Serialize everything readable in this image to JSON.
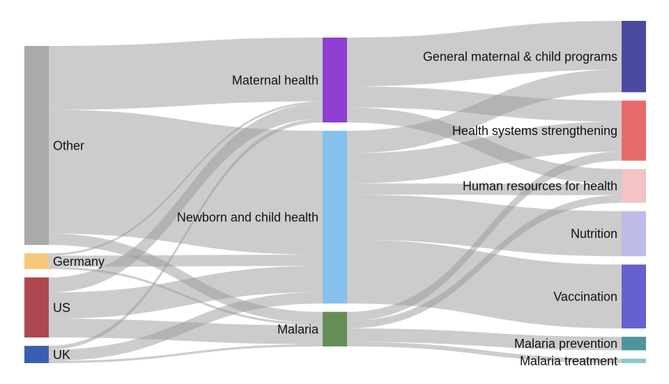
{
  "nodes": [
    {
      "id": "other",
      "label": "Other",
      "column": 0,
      "color": "#aaaaaa",
      "label_side": "right"
    },
    {
      "id": "germany",
      "label": "Germany",
      "column": 0,
      "color": "#f5c87a",
      "label_side": "right"
    },
    {
      "id": "us",
      "label": "US",
      "column": 0,
      "color": "#ad4850",
      "label_side": "right"
    },
    {
      "id": "uk",
      "label": "UK",
      "column": 0,
      "color": "#3a5fb2",
      "label_side": "right"
    },
    {
      "id": "maternal",
      "label": "Maternal health",
      "column": 1,
      "color": "#8f3fd2",
      "label_side": "left"
    },
    {
      "id": "newborn",
      "label": "Newborn and child health",
      "column": 1,
      "color": "#85c1ec",
      "label_side": "left"
    },
    {
      "id": "malaria",
      "label": "Malaria",
      "column": 1,
      "color": "#658e57",
      "label_side": "left"
    },
    {
      "id": "general",
      "label": "General maternal & child programs",
      "column": 2,
      "color": "#4a4a9e",
      "label_side": "left"
    },
    {
      "id": "hss",
      "label": "Health systems strengthening",
      "column": 2,
      "color": "#e86b6b",
      "label_side": "left"
    },
    {
      "id": "hrh",
      "label": "Human resources for health",
      "column": 2,
      "color": "#f2c4c4",
      "label_side": "left"
    },
    {
      "id": "nutrition",
      "label": "Nutrition",
      "column": 2,
      "color": "#bdbbe8",
      "label_side": "left"
    },
    {
      "id": "vaccination",
      "label": "Vaccination",
      "column": 2,
      "color": "#6561cf",
      "label_side": "left"
    },
    {
      "id": "malaria_prev",
      "label": "Malaria prevention",
      "column": 2,
      "color": "#4e949e",
      "label_side": "left"
    },
    {
      "id": "malaria_treat",
      "label": "Malaria treatment",
      "column": 2,
      "color": "#8cc6cc",
      "label_side": "left"
    }
  ],
  "links": [
    {
      "source": "other",
      "target": "maternal",
      "value": 85
    },
    {
      "source": "other",
      "target": "newborn",
      "value": 165
    },
    {
      "source": "other",
      "target": "malaria",
      "value": 15
    },
    {
      "source": "germany",
      "target": "maternal",
      "value": 3
    },
    {
      "source": "germany",
      "target": "newborn",
      "value": 15
    },
    {
      "source": "germany",
      "target": "malaria",
      "value": 3
    },
    {
      "source": "us",
      "target": "maternal",
      "value": 20
    },
    {
      "source": "us",
      "target": "newborn",
      "value": 35
    },
    {
      "source": "us",
      "target": "malaria",
      "value": 25
    },
    {
      "source": "uk",
      "target": "maternal",
      "value": 5
    },
    {
      "source": "uk",
      "target": "newborn",
      "value": 15
    },
    {
      "source": "uk",
      "target": "malaria",
      "value": 3
    },
    {
      "source": "maternal",
      "target": "general",
      "value": 65
    },
    {
      "source": "maternal",
      "target": "hss",
      "value": 28
    },
    {
      "source": "maternal",
      "target": "hrh",
      "value": 20
    },
    {
      "source": "newborn",
      "target": "general",
      "value": 30
    },
    {
      "source": "newborn",
      "target": "hss",
      "value": 40
    },
    {
      "source": "newborn",
      "target": "hrh",
      "value": 15
    },
    {
      "source": "newborn",
      "target": "nutrition",
      "value": 60
    },
    {
      "source": "newborn",
      "target": "vaccination",
      "value": 85
    },
    {
      "source": "malaria",
      "target": "hss",
      "value": 12
    },
    {
      "source": "malaria",
      "target": "hrh",
      "value": 10
    },
    {
      "source": "malaria",
      "target": "malaria_prev",
      "value": 18
    },
    {
      "source": "malaria",
      "target": "malaria_treat",
      "value": 6
    }
  ]
}
